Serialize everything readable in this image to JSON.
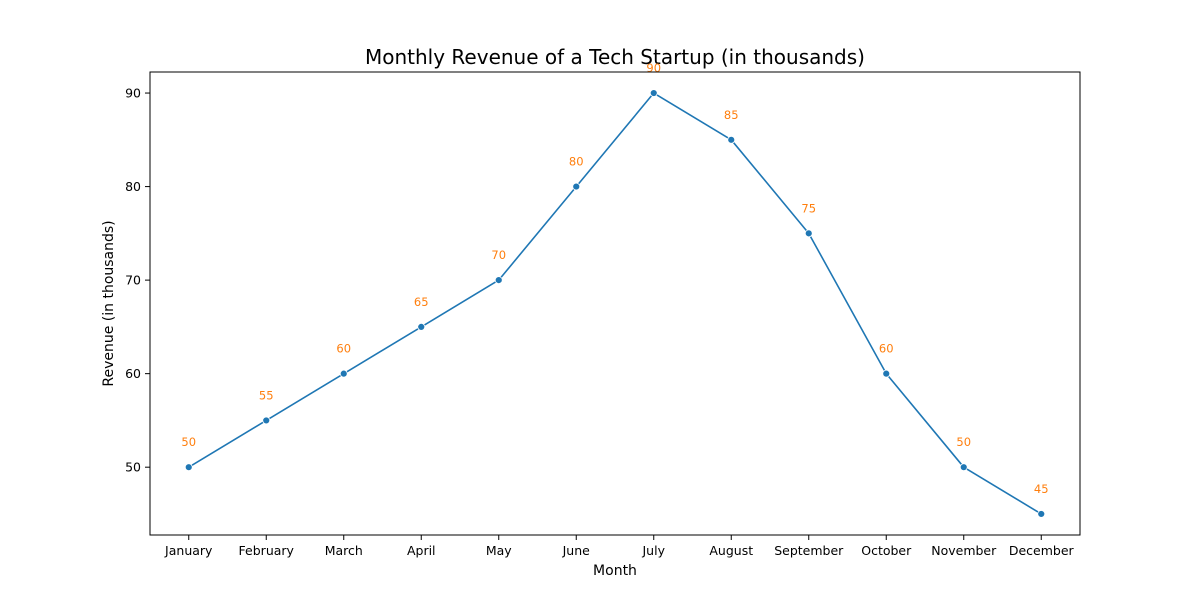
{
  "chart_data": {
    "type": "line",
    "title": "Monthly Revenue of a Tech Startup (in thousands)",
    "xlabel": "Month",
    "ylabel": "Revenue (in thousands)",
    "categories": [
      "January",
      "February",
      "March",
      "April",
      "May",
      "June",
      "July",
      "August",
      "September",
      "October",
      "November",
      "December"
    ],
    "values": [
      50,
      55,
      60,
      65,
      70,
      80,
      90,
      85,
      75,
      60,
      50,
      45
    ],
    "yticks": [
      50,
      60,
      70,
      80,
      90
    ],
    "ylim": [
      42.75,
      92.25
    ],
    "grid": false,
    "line_color": "#1f77b4",
    "label_color": "#ff7f0e"
  }
}
